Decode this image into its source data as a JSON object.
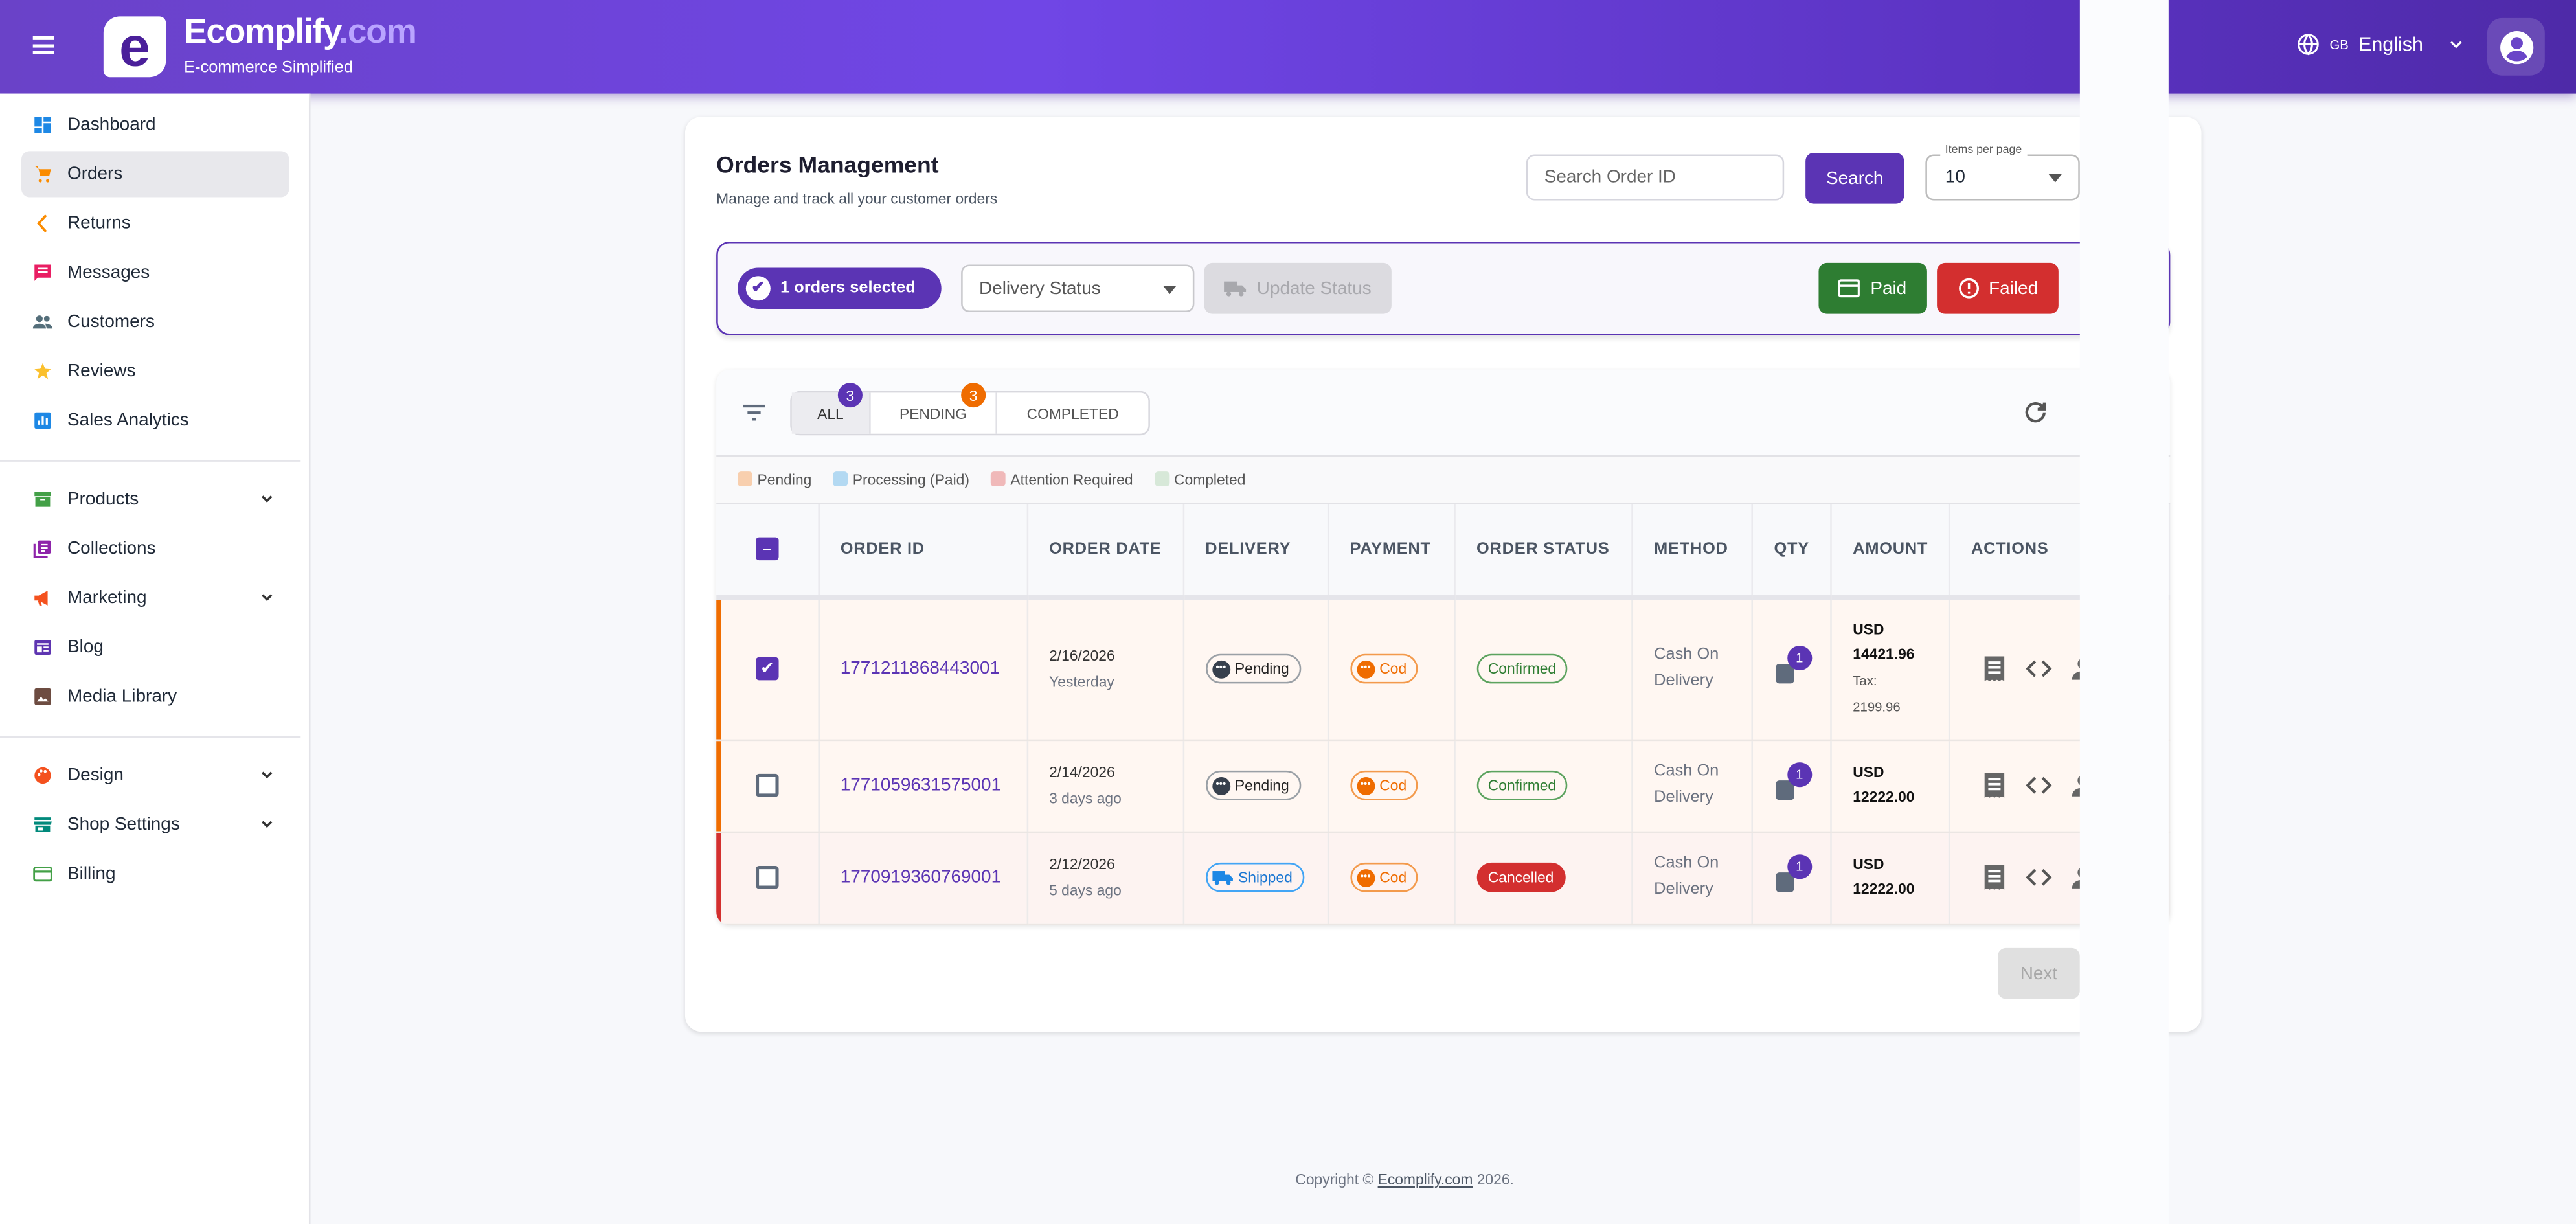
{
  "header": {
    "brand": "Ecomplify",
    "brand_suffix": ".com",
    "logo_letter": "e",
    "tagline": "E-commerce Simplified",
    "language_flag": "GB",
    "language": "English"
  },
  "sidebar": {
    "items": [
      {
        "label": "Dashboard",
        "icon": "dashboard-icon",
        "color": "#1e88e5"
      },
      {
        "label": "Orders",
        "icon": "cart-icon",
        "color": "#fb8c00",
        "active": true
      },
      {
        "label": "Returns",
        "icon": "chevron-left-icon",
        "color": "#fb8c00"
      },
      {
        "label": "Messages",
        "icon": "message-icon",
        "color": "#e91e63"
      },
      {
        "label": "Customers",
        "icon": "people-icon",
        "color": "#546e7a"
      },
      {
        "label": "Reviews",
        "icon": "star-icon",
        "color": "#fbc02d"
      },
      {
        "label": "Sales Analytics",
        "icon": "analytics-icon",
        "color": "#1e88e5"
      },
      {
        "label": "Products",
        "icon": "archive-icon",
        "color": "#43a047",
        "expandable": true
      },
      {
        "label": "Collections",
        "icon": "collections-icon",
        "color": "#8e24aa"
      },
      {
        "label": "Marketing",
        "icon": "megaphone-icon",
        "color": "#f4511e",
        "expandable": true
      },
      {
        "label": "Blog",
        "icon": "blog-icon",
        "color": "#5e35b1"
      },
      {
        "label": "Media Library",
        "icon": "image-icon",
        "color": "#6d4c41"
      },
      {
        "label": "Design",
        "icon": "palette-icon",
        "color": "#f4511e",
        "expandable": true
      },
      {
        "label": "Shop Settings",
        "icon": "store-icon",
        "color": "#00897b",
        "expandable": true
      },
      {
        "label": "Billing",
        "icon": "credit-card-icon",
        "color": "#43a047"
      }
    ]
  },
  "main": {
    "title": "Orders Management",
    "subtitle": "Manage and track all your customer orders",
    "search_placeholder": "Search Order ID",
    "search_label": "Search",
    "items_per_page_label": "Items per page",
    "items_per_page": "10",
    "selection": {
      "count_label": "1 orders selected",
      "delivery_status_placeholder": "Delivery Status",
      "update_label": "Update Status",
      "paid_label": "Paid",
      "failed_label": "Failed"
    },
    "tabs": [
      {
        "label": "ALL",
        "badge": "3",
        "badge_color": "#5b34b4"
      },
      {
        "label": "PENDING",
        "badge": "3",
        "badge_color": "#ef6c00"
      },
      {
        "label": "COMPLETED"
      }
    ],
    "legend": [
      {
        "label": "Pending",
        "color": "#f8cfae"
      },
      {
        "label": "Processing (Paid)",
        "color": "#b3d9f2"
      },
      {
        "label": "Attention Required",
        "color": "#f0b9b9"
      },
      {
        "label": "Completed",
        "color": "#d7e8d8"
      }
    ],
    "columns": [
      "ORDER ID",
      "ORDER DATE",
      "DELIVERY",
      "PAYMENT",
      "ORDER STATUS",
      "METHOD",
      "QTY",
      "AMOUNT",
      "ACTIONS"
    ],
    "rows": [
      {
        "selected": true,
        "accent": "#ef6c00",
        "order_id": "1771211868443001",
        "date": "2/16/2026",
        "relative": "Yesterday",
        "delivery": "Pending",
        "payment": "Cod",
        "status": "Confirmed",
        "method": "Cash On Delivery",
        "qty": "1",
        "currency": "USD",
        "amount": "14421.96",
        "tax_label": "Tax:",
        "tax": "2199.96"
      },
      {
        "selected": false,
        "accent": "#ef6c00",
        "order_id": "1771059631575001",
        "date": "2/14/2026",
        "relative": "3 days ago",
        "delivery": "Pending",
        "payment": "Cod",
        "status": "Confirmed",
        "method": "Cash On Delivery",
        "qty": "1",
        "currency": "USD",
        "amount": "12222.00"
      },
      {
        "selected": false,
        "accent": "#d32f2f",
        "order_id": "1770919360769001",
        "date": "2/12/2026",
        "relative": "5 days ago",
        "delivery": "Shipped",
        "payment": "Cod",
        "status": "Cancelled",
        "method": "Cash On Delivery",
        "qty": "1",
        "currency": "USD",
        "amount": "12222.00"
      }
    ],
    "next_label": "Next"
  },
  "footer": {
    "prefix": "Copyright © ",
    "link": "Ecomplify.com",
    "suffix": " 2026."
  },
  "colors": {
    "primary": "#5b34b4",
    "success": "#2e7d32",
    "danger": "#d32f2f",
    "warning": "#ef6c00"
  }
}
